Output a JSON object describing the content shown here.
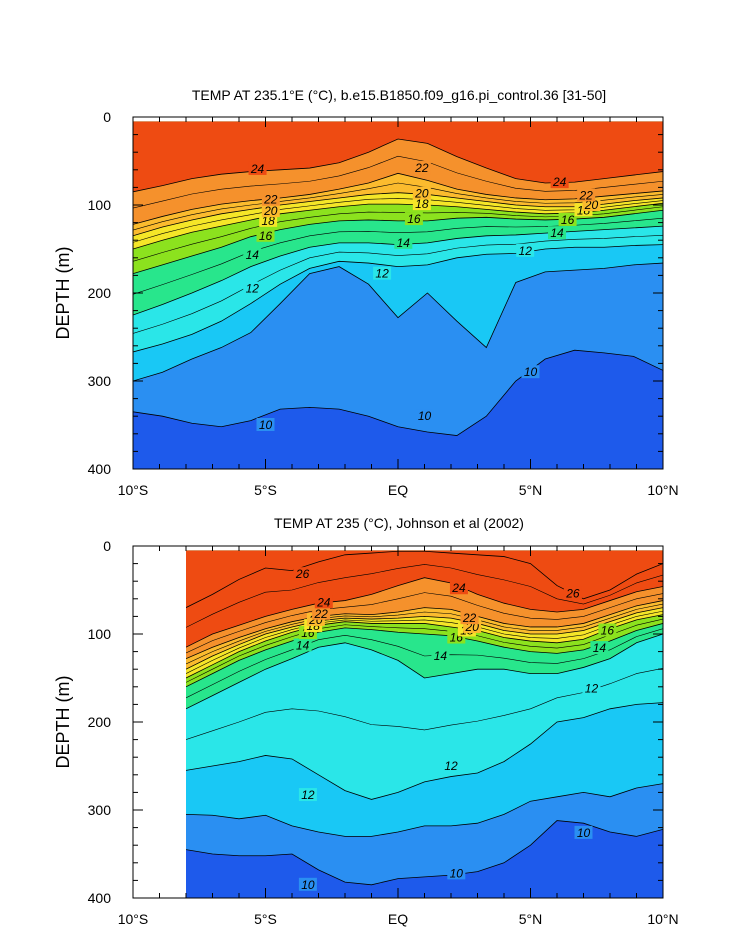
{
  "chart_data": [
    {
      "type": "contour",
      "title": "TEMP AT 235.1°E (°C), b.e15.B1850.f09_g16.pi_control.36 [31-50]",
      "ylabel": "DEPTH (m)",
      "x_tick_labels": [
        "10°S",
        "5°S",
        "EQ",
        "5°N",
        "10°N"
      ],
      "x_ticks": [
        -10,
        -5,
        0,
        5,
        10
      ],
      "y_ticks": [
        0,
        100,
        200,
        300,
        400
      ],
      "xlim": [
        -10,
        10
      ],
      "ylim": [
        400,
        0
      ],
      "contour_interval": 1,
      "color_fills": [
        "#0a1ee6",
        "#1e5aeb",
        "#2a8ff2",
        "#19c8f5",
        "#2ae6e8",
        "#28f5c3",
        "#28e68c",
        "#20d21e",
        "#8ce21e",
        "#e6f526",
        "#f5e628",
        "#fcd22a",
        "#fbbb2e",
        "#f9a432",
        "#f5912c",
        "#f07a1e",
        "#ee4b12"
      ],
      "isotherms": [
        {
          "temp": 10,
          "depth_m": [
            335,
            340,
            348,
            352,
            345,
            332,
            330,
            332,
            340,
            352,
            358,
            362,
            340,
            300,
            275,
            265,
            268,
            272,
            288
          ],
          "labels": [
            {
              "text": "10",
              "x": -5,
              "depth": 350
            },
            {
              "text": "10",
              "x": 1,
              "depth": 340
            },
            {
              "text": "10",
              "x": 5,
              "depth": 290
            }
          ]
        },
        {
          "temp": 11,
          "depth_m": [
            300,
            290,
            275,
            262,
            245,
            212,
            178,
            170,
            190,
            228,
            200,
            232,
            262,
            188,
            176,
            174,
            172,
            168,
            166
          ],
          "labels": []
        },
        {
          "temp": 12,
          "depth_m": [
            267,
            258,
            247,
            232,
            212,
            190,
            172,
            164,
            166,
            170,
            168,
            160,
            156,
            155,
            150,
            148,
            148,
            146,
            145
          ],
          "labels": [
            {
              "text": "12",
              "x": -5.5,
              "depth": 195
            },
            {
              "text": "12",
              "x": -0.6,
              "depth": 178
            },
            {
              "text": "12",
              "x": 4.8,
              "depth": 152
            }
          ]
        },
        {
          "temp": 14,
          "depth_m": [
            225,
            213,
            200,
            186,
            170,
            158,
            148,
            143,
            143,
            145,
            143,
            138,
            135,
            134,
            132,
            130,
            128,
            126,
            124
          ],
          "labels": [
            {
              "text": "14",
              "x": -5.5,
              "depth": 157
            },
            {
              "text": "14",
              "x": 0.2,
              "depth": 143
            },
            {
              "text": "14",
              "x": 6,
              "depth": 132
            }
          ]
        },
        {
          "temp": 16,
          "depth_m": [
            178,
            168,
            158,
            148,
            136,
            128,
            122,
            118,
            117,
            118,
            118,
            115,
            114,
            116,
            117,
            116,
            114,
            110,
            106
          ],
          "labels": [
            {
              "text": "16",
              "x": -5,
              "depth": 135
            },
            {
              "text": "16",
              "x": 0.6,
              "depth": 116
            },
            {
              "text": "16",
              "x": 6.4,
              "depth": 117
            }
          ]
        },
        {
          "temp": 18,
          "depth_m": [
            150,
            140,
            131,
            124,
            117,
            110,
            106,
            102,
            99,
            99,
            100,
            102,
            105,
            108,
            110,
            109,
            106,
            102,
            98
          ],
          "labels": [
            {
              "text": "18",
              "x": -4.9,
              "depth": 118
            },
            {
              "text": "18",
              "x": 0.9,
              "depth": 99
            },
            {
              "text": "18",
              "x": 7,
              "depth": 106
            }
          ]
        },
        {
          "temp": 20,
          "depth_m": [
            135,
            125,
            117,
            110,
            105,
            100,
            96,
            92,
            88,
            86,
            88,
            92,
            96,
            100,
            102,
            102,
            99,
            95,
            92
          ],
          "labels": [
            {
              "text": "20",
              "x": -4.8,
              "depth": 107
            },
            {
              "text": "20",
              "x": 0.9,
              "depth": 87
            },
            {
              "text": "20",
              "x": 7.3,
              "depth": 100
            }
          ]
        },
        {
          "temp": 22,
          "depth_m": [
            122,
            113,
            105,
            99,
            95,
            92,
            88,
            82,
            75,
            64,
            72,
            82,
            88,
            92,
            94,
            93,
            90,
            87,
            84
          ],
          "labels": [
            {
              "text": "22",
              "x": -4.8,
              "depth": 94
            },
            {
              "text": "22",
              "x": 0.9,
              "depth": 58
            },
            {
              "text": "22",
              "x": 7.1,
              "depth": 89
            }
          ]
        },
        {
          "temp": 24,
          "depth_m": [
            85,
            78,
            70,
            65,
            62,
            60,
            58,
            52,
            40,
            25,
            30,
            45,
            58,
            70,
            75,
            74,
            70,
            66,
            62
          ],
          "labels": [
            {
              "text": "24",
              "x": -5.3,
              "depth": 59
            },
            {
              "text": "24",
              "x": 6.1,
              "depth": 74
            }
          ]
        }
      ]
    },
    {
      "type": "contour",
      "title": "TEMP AT 235 (°C), Johnson et al (2002)",
      "ylabel": "DEPTH (m)",
      "x_tick_labels": [
        "10°S",
        "5°S",
        "EQ",
        "5°N",
        "10°N"
      ],
      "x_ticks": [
        -10,
        -5,
        0,
        5,
        10
      ],
      "y_ticks": [
        0,
        100,
        200,
        300,
        400
      ],
      "xlim": [
        -10,
        10
      ],
      "ylim": [
        400,
        0
      ],
      "data_xlim": [
        -8,
        10
      ],
      "contour_interval": 1,
      "color_fills": [
        "#0a1ee6",
        "#1e5aeb",
        "#2a8ff2",
        "#19c8f5",
        "#2ae6e8",
        "#28f5c3",
        "#28e68c",
        "#20d21e",
        "#8ce21e",
        "#e6f526",
        "#f5e628",
        "#fcd22a",
        "#fbbb2e",
        "#f9a432",
        "#f5912c",
        "#f07a1e",
        "#ee4b12"
      ],
      "isotherms": [
        {
          "temp": 10,
          "depth_m": [
            345,
            350,
            352,
            352,
            350,
            368,
            382,
            385,
            378,
            376,
            374,
            370,
            360,
            340,
            312,
            315,
            325,
            330,
            322
          ],
          "labels": [
            {
              "text": "10",
              "x": -3.4,
              "depth": 385
            },
            {
              "text": "10",
              "x": 2.2,
              "depth": 372
            },
            {
              "text": "10",
              "x": 7,
              "depth": 326
            }
          ]
        },
        {
          "temp": 11,
          "depth_m": [
            305,
            306,
            310,
            306,
            318,
            325,
            330,
            330,
            325,
            318,
            318,
            315,
            305,
            290,
            285,
            280,
            285,
            275,
            270
          ],
          "labels": []
        },
        {
          "temp": 12,
          "depth_m": [
            255,
            250,
            245,
            238,
            242,
            260,
            278,
            288,
            280,
            268,
            262,
            258,
            245,
            225,
            200,
            195,
            185,
            180,
            178
          ],
          "labels": [
            {
              "text": "12",
              "x": -3.4,
              "depth": 283
            },
            {
              "text": "12",
              "x": 2,
              "depth": 250
            },
            {
              "text": "12",
              "x": 7.3,
              "depth": 162
            }
          ]
        },
        {
          "temp": 14,
          "depth_m": [
            185,
            170,
            155,
            140,
            128,
            115,
            110,
            118,
            130,
            150,
            145,
            140,
            140,
            145,
            145,
            138,
            128,
            110,
            100
          ],
          "labels": [
            {
              "text": "14",
              "x": -3.6,
              "depth": 113
            },
            {
              "text": "14",
              "x": 1.6,
              "depth": 125
            },
            {
              "text": "14",
              "x": 7.6,
              "depth": 116
            }
          ]
        },
        {
          "temp": 16,
          "depth_m": [
            160,
            145,
            130,
            118,
            108,
            98,
            93,
            95,
            98,
            100,
            102,
            108,
            115,
            120,
            122,
            118,
            108,
            96,
            88
          ],
          "labels": [
            {
              "text": "16",
              "x": -3.4,
              "depth": 99
            },
            {
              "text": "16",
              "x": 2.2,
              "depth": 104
            },
            {
              "text": "16",
              "x": 7.9,
              "depth": 96
            }
          ]
        },
        {
          "temp": 18,
          "depth_m": [
            150,
            135,
            120,
            108,
            98,
            90,
            86,
            88,
            88,
            88,
            92,
            96,
            104,
            108,
            110,
            106,
            94,
            84,
            78
          ],
          "labels": [
            {
              "text": "18",
              "x": -3.2,
              "depth": 91
            },
            {
              "text": "18",
              "x": 2.6,
              "depth": 96
            }
          ]
        },
        {
          "temp": 20,
          "depth_m": [
            140,
            125,
            112,
            100,
            92,
            85,
            82,
            83,
            82,
            80,
            82,
            88,
            96,
            100,
            100,
            96,
            86,
            76,
            70
          ],
          "labels": [
            {
              "text": "20",
              "x": -3.1,
              "depth": 84
            },
            {
              "text": "20",
              "x": 2.8,
              "depth": 92
            }
          ]
        },
        {
          "temp": 22,
          "depth_m": [
            128,
            115,
            104,
            94,
            86,
            80,
            77,
            78,
            75,
            70,
            72,
            80,
            88,
            92,
            92,
            88,
            78,
            68,
            62
          ],
          "labels": [
            {
              "text": "22",
              "x": -2.9,
              "depth": 77
            },
            {
              "text": "22",
              "x": 2.7,
              "depth": 82
            }
          ]
        },
        {
          "temp": 24,
          "depth_m": [
            115,
            100,
            90,
            80,
            72,
            65,
            62,
            55,
            45,
            36,
            42,
            55,
            65,
            72,
            75,
            72,
            62,
            52,
            46
          ],
          "labels": [
            {
              "text": "24",
              "x": -2.8,
              "depth": 64
            },
            {
              "text": "24",
              "x": 2.3,
              "depth": 48
            }
          ]
        },
        {
          "temp": 26,
          "depth_m": [
            70,
            55,
            38,
            25,
            28,
            18,
            10,
            8,
            6,
            6,
            8,
            10,
            12,
            20,
            45,
            60,
            50,
            32,
            20
          ],
          "labels": [
            {
              "text": "26",
              "x": -3.6,
              "depth": 32
            },
            {
              "text": "26",
              "x": 6.6,
              "depth": 54
            }
          ]
        }
      ]
    }
  ]
}
